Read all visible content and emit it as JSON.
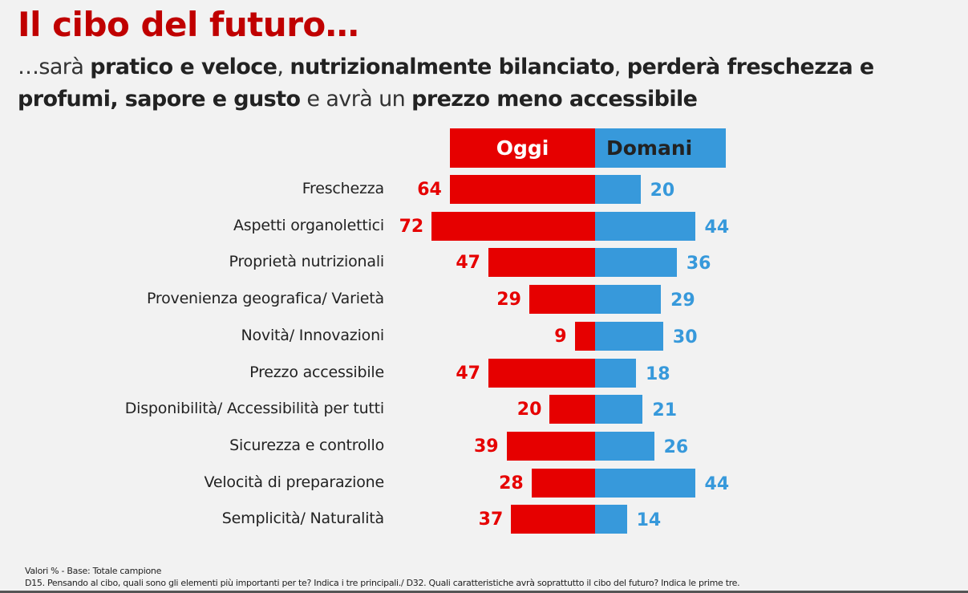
{
  "header": {
    "title": "Il cibo del futuro…",
    "subtitle_parts": [
      {
        "text": "…sarà ",
        "bold": false
      },
      {
        "text": "pratico e veloce",
        "bold": true
      },
      {
        "text": ", ",
        "bold": false
      },
      {
        "text": "nutrizionalmente bilanciato",
        "bold": true
      },
      {
        "text": ", ",
        "bold": false
      },
      {
        "text": "perderà freschezza e profumi, sapore e gusto",
        "bold": true
      },
      {
        "text": " e avrà un ",
        "bold": false
      },
      {
        "text": "prezzo meno accessibile",
        "bold": true
      }
    ]
  },
  "colors": {
    "title": "#c00000",
    "oggi": "#e60000",
    "domani": "#3799db",
    "background": "#f2f2f2"
  },
  "chart_data": {
    "type": "bar",
    "orientation": "horizontal-diverging",
    "title": "Il cibo del futuro…",
    "xlabel": "",
    "ylabel": "",
    "units": "%",
    "grid": false,
    "legend_placement": "top-center",
    "categories": [
      "Freschezza",
      "Aspetti organolettici",
      "Proprietà nutrizionali",
      "Provenienza geografica/ Varietà",
      "Novità/ Innovazioni",
      "Prezzo accessibile",
      "Disponibilità/ Accessibilità per tutti",
      "Sicurezza e controllo",
      "Velocità di preparazione",
      "Semplicità/ Naturalità"
    ],
    "series": [
      {
        "name": "Oggi",
        "side": "left",
        "values": [
          64,
          72,
          47,
          29,
          9,
          47,
          20,
          39,
          28,
          37
        ]
      },
      {
        "name": "Domani",
        "side": "right",
        "values": [
          20,
          44,
          36,
          29,
          30,
          18,
          21,
          26,
          44,
          14
        ]
      }
    ]
  },
  "footnotes": {
    "line1": "Valori % - Base: Totale campione",
    "line2": "D15. Pensando al cibo, quali sono gli elementi più importanti per te? Indica i tre principali./ D32. Quali caratteristiche avrà soprattutto il cibo del futuro? Indica le prime tre."
  }
}
